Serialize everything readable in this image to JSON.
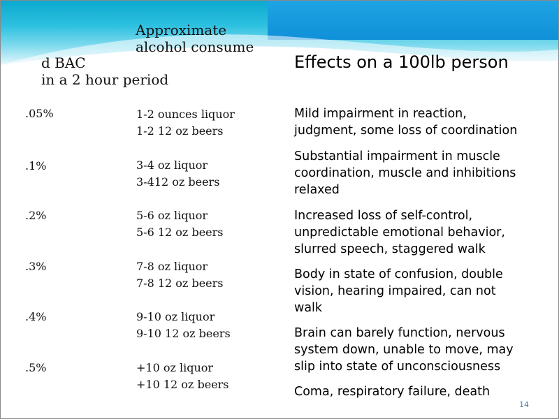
{
  "header": {
    "col2_line1": "Approximate",
    "col2_line2": "alcohol consume",
    "col1_line1": "d BAC",
    "col1_line2": "in a 2 hour period",
    "col3": "Effects on a 100lb person"
  },
  "rows": [
    {
      "bac": ".05%",
      "amount_line1": "1-2 ounces liquor",
      "amount_line2": "1-2 12 oz beers"
    },
    {
      "bac": ".1%",
      "amount_line1": "3-4 oz liquor",
      "amount_line2": "3-412 oz beers"
    },
    {
      "bac": ".2%",
      "amount_line1": "5-6 oz liquor",
      "amount_line2": "5-6 12 oz beers"
    },
    {
      "bac": ".3%",
      "amount_line1": "7-8 oz liquor",
      "amount_line2": "7-8 12 oz beers"
    },
    {
      "bac": ".4%",
      "amount_line1": "9-10 oz liquor",
      "amount_line2": "9-10 12 oz beers"
    },
    {
      "bac": ".5%",
      "amount_line1": "+10 oz liquor",
      "amount_line2": "+10 12 oz beers"
    }
  ],
  "effects": [
    {
      "line1": "Mild impairment in reaction,",
      "line2": "judgment, some loss of coordination"
    },
    {
      "line1": "Substantial impairment in muscle",
      "line2": "coordination, muscle and inhibitions",
      "line3": "relaxed"
    },
    {
      "line1": "Increased loss of self-control,",
      "line2": "unpredictable emotional behavior,",
      "line3": "slurred speech, staggered walk"
    },
    {
      "line1": "Body in state of confusion, double",
      "line2": "vision, hearing impaired, can not",
      "line3": "walk"
    },
    {
      "line1": "Brain can barely function, nervous",
      "line2": "system down, unable to move, may",
      "line3": "slip into state of unconsciousness"
    },
    {
      "line1": "Coma, respiratory failure, death"
    }
  ],
  "page_number": "14"
}
